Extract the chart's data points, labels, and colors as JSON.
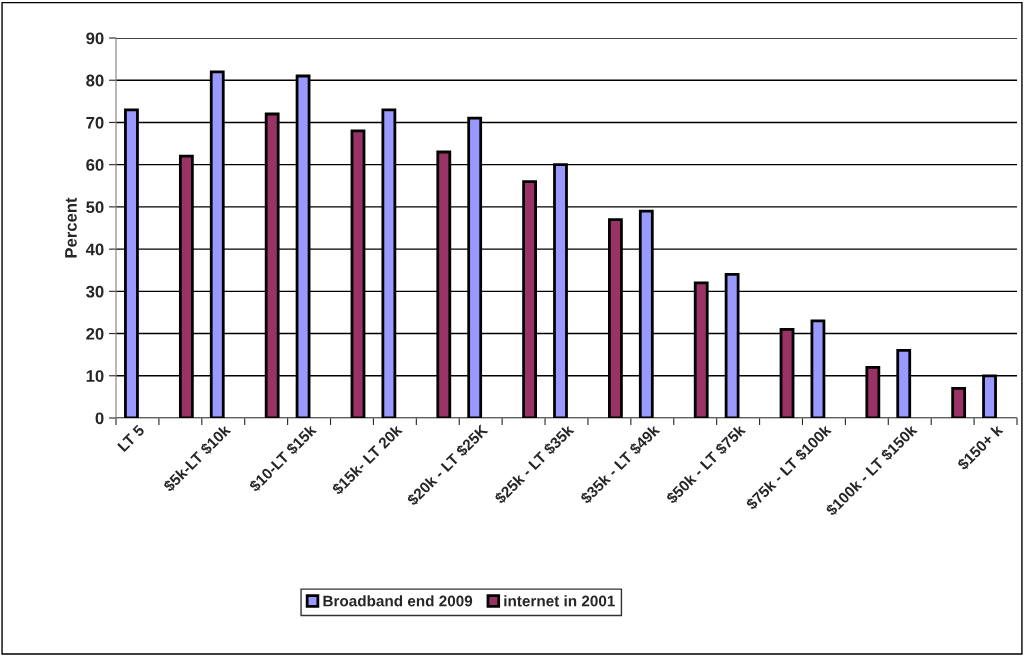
{
  "chart_data": {
    "type": "bar",
    "categories": [
      "LT 5",
      null,
      "$5k-LT $10k",
      null,
      "$10-LT $15k",
      null,
      "$15k- LT 20k",
      null,
      "$20k - LT $25K",
      null,
      "$25k - LT $35k",
      null,
      "$35k - LT $49k",
      null,
      "$50k - LT $75k",
      null,
      "$75k - LT $100k",
      null,
      "$100k - LT $150k",
      null,
      "$150+ k"
    ],
    "series": [
      {
        "name": "Broadband end 2009",
        "color": "#9999ff",
        "values": [
          73,
          null,
          82,
          null,
          81,
          null,
          73,
          null,
          71,
          null,
          60,
          null,
          49,
          null,
          34,
          null,
          23,
          null,
          16,
          null,
          10
        ]
      },
      {
        "name": "internet in 2001",
        "color": "#993366",
        "values": [
          null,
          62,
          null,
          72,
          null,
          68,
          null,
          63,
          null,
          56,
          null,
          47,
          null,
          32,
          null,
          21,
          null,
          12,
          null,
          7,
          null
        ]
      }
    ],
    "ylabel": "Percent",
    "ylim": [
      0,
      90
    ],
    "yticks": [
      0,
      10,
      20,
      30,
      40,
      50,
      60,
      70,
      80,
      90
    ],
    "grid": "y",
    "legend": "bottom"
  }
}
